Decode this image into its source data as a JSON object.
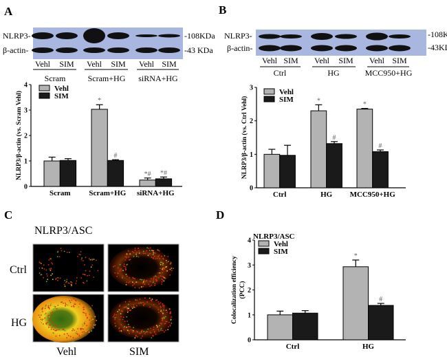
{
  "panels": {
    "A": {
      "label": "A",
      "blot": {
        "row_labels": [
          "NLRP3-",
          "β-actin-"
        ],
        "mw_labels": [
          "-108KDa",
          "-43 KDa"
        ],
        "lanes": [
          "Vehl",
          "SIM",
          "Vehl",
          "SIM",
          "Vehl",
          "SIM"
        ],
        "groups": [
          "Scram",
          "Scram+HG",
          "siRNA+HG"
        ],
        "blot_color": "#a9b6e0"
      }
    },
    "B": {
      "label": "B",
      "blot": {
        "row_labels": [
          "NLRP3-",
          "β-actin-"
        ],
        "mw_labels": [
          "-108KDa",
          "-43KDa"
        ],
        "lanes": [
          "Vehl",
          "SIM",
          "Vehl",
          "SIM",
          "Vehl",
          "SIM"
        ],
        "groups": [
          "Ctrl",
          "HG",
          "MCC950+HG"
        ],
        "blot_color": "#a9b6e0"
      }
    },
    "C": {
      "label": "C",
      "title": "NLRP3/ASC",
      "row_labels": [
        "Ctrl",
        "HG"
      ],
      "col_labels": [
        "Vehl",
        "SIM"
      ]
    },
    "D": {
      "label": "D"
    }
  },
  "chart_data": [
    {
      "type": "bar",
      "panel": "A",
      "ylabel": "NLRP3/β-actin (vs. Scram Vehl)",
      "ylim": [
        0,
        4
      ],
      "yticks": [
        "0",
        "1",
        "2",
        "3",
        "4"
      ],
      "categories": [
        "Scram",
        "Scram+HG",
        "siRNA+HG"
      ],
      "legend": "top-left",
      "series": [
        {
          "name": "Vehl",
          "color": "#b3b3b3",
          "values": [
            1.0,
            3.03,
            0.25
          ],
          "errors": [
            0.15,
            0.18,
            0.08
          ],
          "marks": [
            "",
            "*",
            "*#"
          ]
        },
        {
          "name": "SIM",
          "color": "#1a1a1a",
          "values": [
            1.02,
            1.02,
            0.3
          ],
          "errors": [
            0.07,
            0.03,
            0.07
          ],
          "marks": [
            "",
            "#",
            "*#"
          ]
        }
      ]
    },
    {
      "type": "bar",
      "panel": "B",
      "ylabel": "NLRP3/β-actin (vs. Ctrl Vehl)",
      "ylim": [
        0,
        3
      ],
      "yticks": [
        "0",
        "1",
        "2",
        "3"
      ],
      "categories": [
        "Ctrl",
        "HG",
        "MCC950+HG"
      ],
      "legend": "top-left",
      "series": [
        {
          "name": "Vehl",
          "color": "#b3b3b3",
          "values": [
            1.0,
            2.3,
            2.35
          ],
          "errors": [
            0.15,
            0.18,
            0.02
          ],
          "marks": [
            "",
            "*",
            "*"
          ]
        },
        {
          "name": "SIM",
          "color": "#1a1a1a",
          "values": [
            0.97,
            1.32,
            1.08
          ],
          "errors": [
            0.3,
            0.06,
            0.05
          ],
          "marks": [
            "",
            "#",
            "#"
          ]
        }
      ]
    },
    {
      "type": "bar",
      "panel": "D",
      "title": "NLRP3/ASC",
      "ylabel": [
        "Colocalization efficiency",
        "(PCC)"
      ],
      "ylim": [
        0,
        4
      ],
      "yticks": [
        "0",
        "1",
        "2",
        "3",
        "4"
      ],
      "categories": [
        "Ctrl",
        "HG"
      ],
      "legend": "top-left",
      "series": [
        {
          "name": "Vehl",
          "color": "#b3b3b3",
          "values": [
            1.0,
            2.93
          ],
          "errors": [
            0.15,
            0.27
          ],
          "marks": [
            "",
            "*"
          ]
        },
        {
          "name": "SIM",
          "color": "#1a1a1a",
          "values": [
            1.07,
            1.38
          ],
          "errors": [
            0.1,
            0.08
          ],
          "marks": [
            "",
            "#"
          ]
        }
      ]
    }
  ]
}
